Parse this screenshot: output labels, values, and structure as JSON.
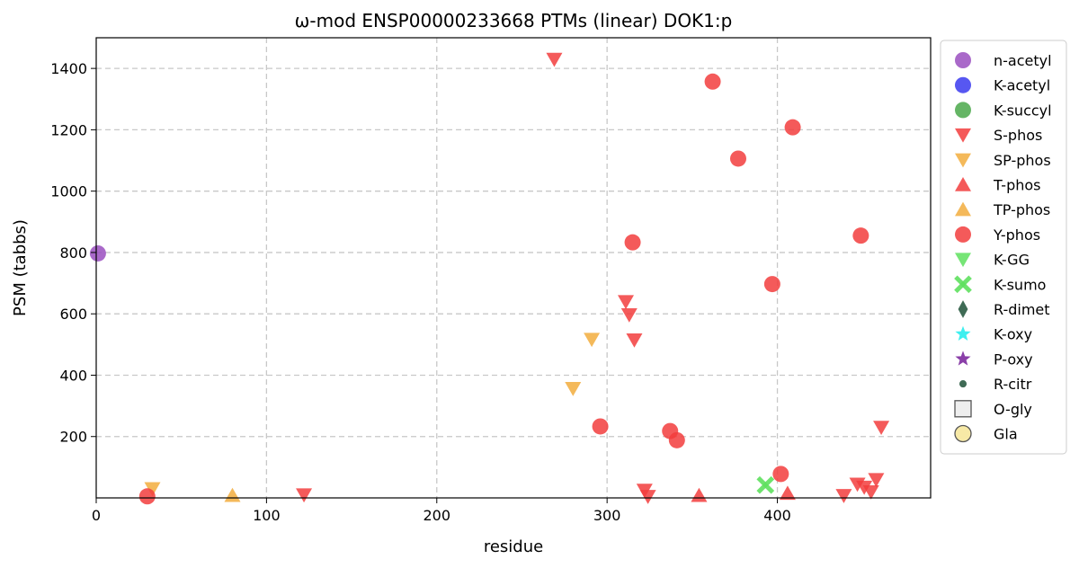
{
  "chart_data": {
    "type": "scatter",
    "title": "ω-mod ENSP00000233668 PTMs (linear) DOK1:p",
    "xlabel": "residue",
    "ylabel": "PSM (tabbs)",
    "xlim": [
      0,
      490
    ],
    "ylim": [
      0,
      1500
    ],
    "xticks": [
      0,
      100,
      200,
      300,
      400
    ],
    "yticks": [
      200,
      400,
      600,
      800,
      1000,
      1200,
      1400
    ],
    "grid": true,
    "legend_position": "outside-right",
    "legend": [
      {
        "name": "n-acetyl",
        "marker": "circle",
        "color": "#9a4fc0"
      },
      {
        "name": "K-acetyl",
        "marker": "circle",
        "color": "#3a3aef"
      },
      {
        "name": "K-succyl",
        "marker": "circle",
        "color": "#4aa84a"
      },
      {
        "name": "S-phos",
        "marker": "triangle-down",
        "color": "#f23d3d"
      },
      {
        "name": "SP-phos",
        "marker": "triangle-down",
        "color": "#f2ad3d"
      },
      {
        "name": "T-phos",
        "marker": "triangle-up",
        "color": "#f23d3d"
      },
      {
        "name": "TP-phos",
        "marker": "triangle-up",
        "color": "#f2ad3d"
      },
      {
        "name": "Y-phos",
        "marker": "circle",
        "color": "#f23d3d"
      },
      {
        "name": "K-GG",
        "marker": "triangle-down",
        "color": "#5ee05e"
      },
      {
        "name": "K-sumo",
        "marker": "x",
        "color": "#5ee05e"
      },
      {
        "name": "R-dimet",
        "marker": "diamond",
        "color": "#3f6b55"
      },
      {
        "name": "K-oxy",
        "marker": "star",
        "color": "#3fefef"
      },
      {
        "name": "P-oxy",
        "marker": "star",
        "color": "#8a3fa8"
      },
      {
        "name": "R-citr",
        "marker": "small-circle",
        "color": "#3f6b55"
      },
      {
        "name": "O-gly",
        "marker": "square",
        "color": "#eeeeee"
      },
      {
        "name": "Gla",
        "marker": "circle-outline",
        "color": "#f7e9a6"
      }
    ],
    "series": [
      {
        "name": "n-acetyl",
        "points": [
          [
            1,
            797
          ]
        ]
      },
      {
        "name": "S-phos",
        "points": [
          [
            269,
            1430
          ],
          [
            311,
            640
          ],
          [
            313,
            597
          ],
          [
            316,
            515
          ],
          [
            322,
            25
          ],
          [
            324,
            5
          ],
          [
            122,
            10
          ],
          [
            439,
            8
          ],
          [
            447,
            45
          ],
          [
            451,
            35
          ],
          [
            455,
            20
          ],
          [
            458,
            60
          ],
          [
            461,
            230
          ]
        ]
      },
      {
        "name": "SP-phos",
        "points": [
          [
            33,
            30
          ],
          [
            280,
            357
          ],
          [
            291,
            517
          ]
        ]
      },
      {
        "name": "T-phos",
        "points": [
          [
            354,
            8
          ],
          [
            406,
            15
          ]
        ]
      },
      {
        "name": "TP-phos",
        "points": [
          [
            80,
            8
          ]
        ]
      },
      {
        "name": "Y-phos",
        "points": [
          [
            30,
            5
          ],
          [
            296,
            233
          ],
          [
            315,
            833
          ],
          [
            337,
            218
          ],
          [
            341,
            188
          ],
          [
            362,
            1357
          ],
          [
            377,
            1106
          ],
          [
            397,
            697
          ],
          [
            402,
            78
          ],
          [
            409,
            1208
          ],
          [
            449,
            855
          ]
        ]
      },
      {
        "name": "K-sumo",
        "points": [
          [
            393,
            42
          ]
        ]
      }
    ]
  }
}
